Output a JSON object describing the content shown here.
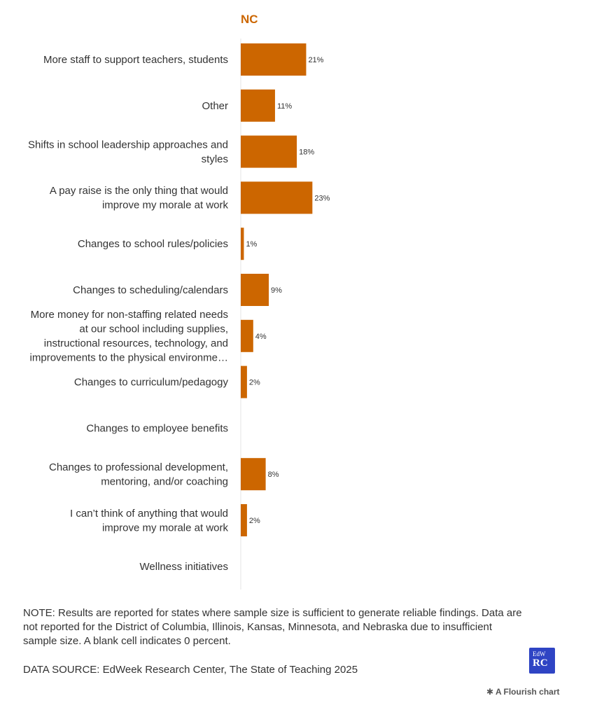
{
  "chart_data": {
    "type": "bar",
    "orientation": "horizontal",
    "panel_title": "NC",
    "categories": [
      [
        "More staff to support teachers, students"
      ],
      [
        "Other"
      ],
      [
        "Shifts in school leadership approaches and",
        "styles"
      ],
      [
        "A pay raise is the only thing that would",
        "improve my morale at work"
      ],
      [
        "Changes to school rules/policies"
      ],
      [
        "Changes to scheduling/calendars"
      ],
      [
        "More money for non-staffing related needs",
        "at our school including supplies,",
        "instructional resources, technology, and",
        "improvements to the physical environme…"
      ],
      [
        "Changes to curriculum/pedagogy"
      ],
      [
        "Changes to employee benefits"
      ],
      [
        "Changes to professional development,",
        "mentoring, and/or coaching"
      ],
      [
        "I can’t think of anything that would",
        "improve my morale at work"
      ],
      [
        "Wellness initiatives"
      ]
    ],
    "values": [
      21,
      11,
      18,
      23,
      1,
      9,
      4,
      2,
      null,
      8,
      2,
      null
    ],
    "value_labels": [
      "21%",
      "11%",
      "18%",
      "23%",
      "1%",
      "9%",
      "4%",
      "2%",
      "",
      "8%",
      "2%",
      ""
    ],
    "xlim": [
      0,
      100
    ],
    "grid": false,
    "legend": "none",
    "colors": {
      "bar": "#cc6600",
      "title": "#cc6600",
      "axis": "#e6e6e6"
    }
  },
  "footer": {
    "note": "NOTE: Results are reported for states where sample size is sufficient to generate reliable findings. Data are not reported for the District of Columbia, Illinois, Kansas, Minnesota, and Nebraska due to insufficient sample size. A blank cell indicates 0 percent.",
    "source": "DATA SOURCE: EdWeek Research Center, The State of Teaching 2025"
  },
  "logo": {
    "top": "EdW",
    "bottom": "RC"
  },
  "credit": {
    "icon": "flourish-asterisk-icon",
    "text": "A Flourish chart"
  }
}
